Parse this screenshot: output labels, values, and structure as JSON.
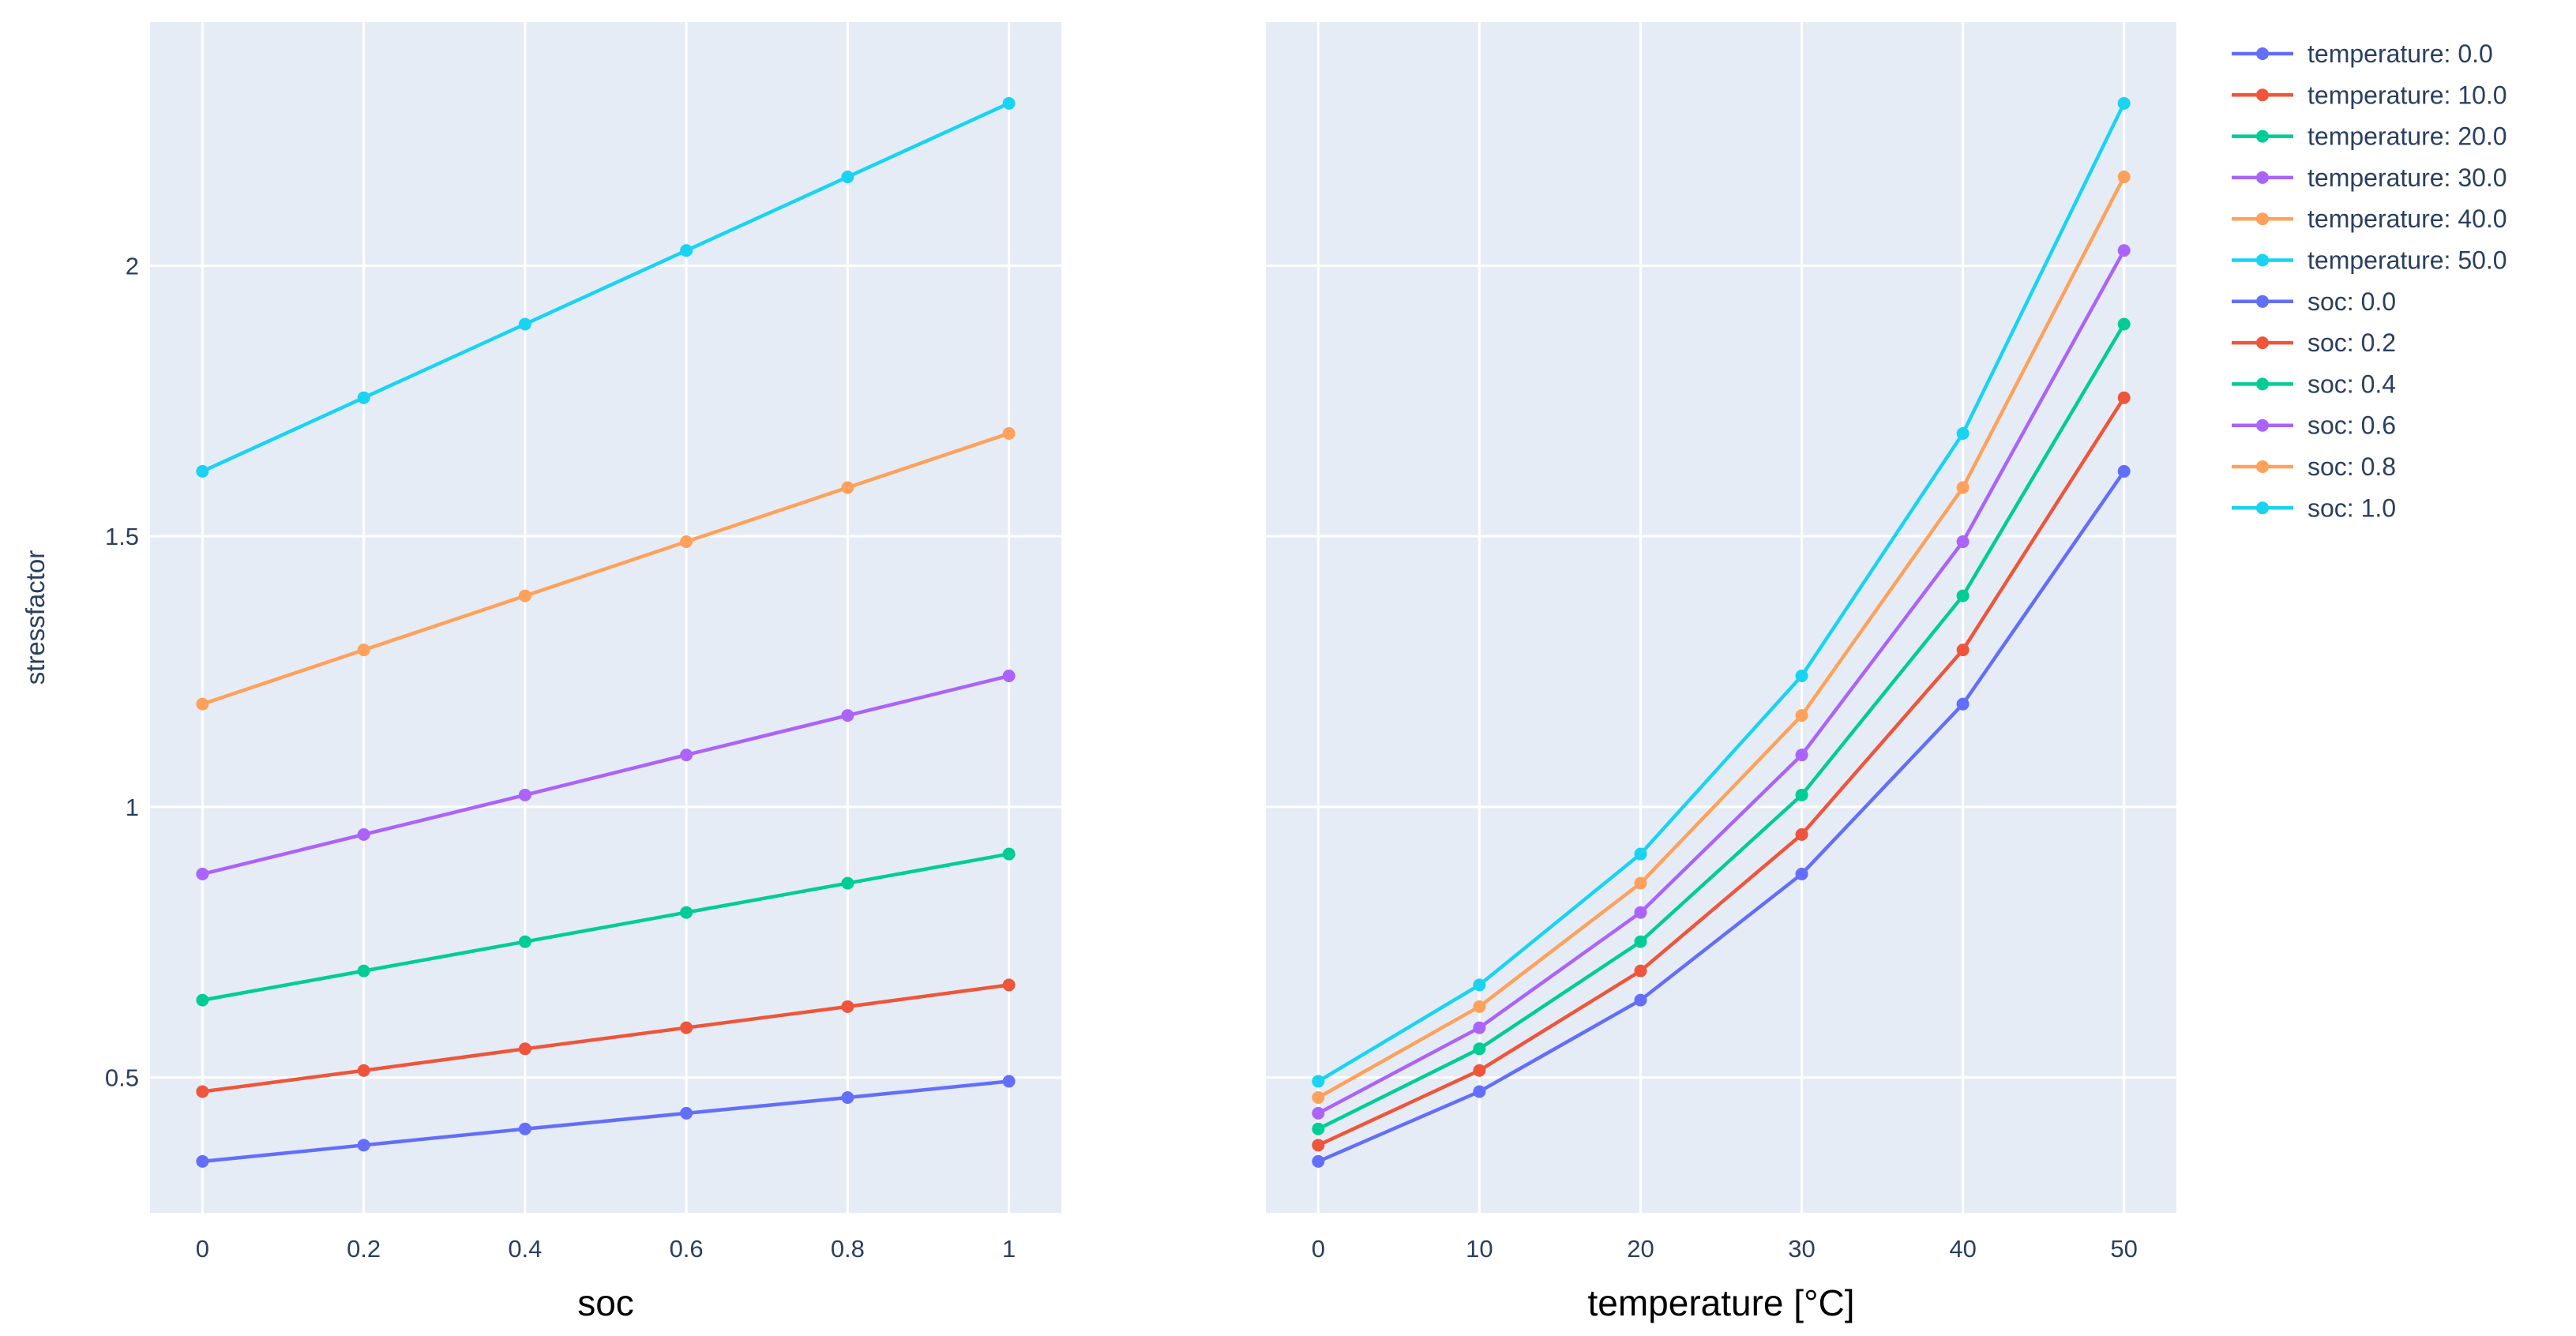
{
  "colors": {
    "plot_bg": "#e5ecf6",
    "grid": "#ffffff",
    "text": "#2a3f5f",
    "palette": [
      "#636efa",
      "#ef553b",
      "#00cc96",
      "#ab63fa",
      "#ffa15a",
      "#19d3f3"
    ]
  },
  "chart_data": [
    {
      "type": "line",
      "title": "",
      "xlabel": "soc",
      "ylabel": "stressfactor",
      "x": [
        0,
        0.2,
        0.4,
        0.6,
        0.8,
        1
      ],
      "x_tick_labels": [
        "0",
        "0.2",
        "0.4",
        "0.6",
        "0.8",
        "1"
      ],
      "xlim": [
        -0.065,
        1.065
      ],
      "ylim": [
        0.25,
        2.45
      ],
      "y_ticks": [
        0.5,
        1,
        1.5,
        2
      ],
      "y_tick_labels": [
        "0.5",
        "1",
        "1.5",
        "2"
      ],
      "grid": true,
      "series": [
        {
          "name": "temperature: 0.0",
          "values": [
            0.345,
            0.375,
            0.405,
            0.434,
            0.463,
            0.493
          ]
        },
        {
          "name": "temperature: 10.0",
          "values": [
            0.474,
            0.513,
            0.553,
            0.592,
            0.631,
            0.671
          ]
        },
        {
          "name": "temperature: 20.0",
          "values": [
            0.643,
            0.697,
            0.751,
            0.805,
            0.859,
            0.913
          ]
        },
        {
          "name": "temperature: 30.0",
          "values": [
            0.876,
            0.949,
            1.022,
            1.096,
            1.169,
            1.242
          ]
        },
        {
          "name": "temperature: 40.0",
          "values": [
            1.19,
            1.29,
            1.39,
            1.49,
            1.59,
            1.69
          ]
        },
        {
          "name": "temperature: 50.0",
          "values": [
            1.62,
            1.756,
            1.892,
            2.028,
            2.164,
            2.3
          ]
        }
      ]
    },
    {
      "type": "line",
      "title": "",
      "xlabel": "temperature [°C]",
      "ylabel": "",
      "x": [
        0,
        10,
        20,
        30,
        40,
        50
      ],
      "x_tick_labels": [
        "0",
        "10",
        "20",
        "30",
        "40",
        "50"
      ],
      "xlim": [
        -3.25,
        53.25
      ],
      "ylim": [
        0.25,
        2.45
      ],
      "y_ticks": [
        0.5,
        1,
        1.5,
        2
      ],
      "grid": true,
      "legend": "right",
      "series": [
        {
          "name": "soc: 0.0",
          "values": [
            0.345,
            0.474,
            0.643,
            0.876,
            1.19,
            1.62
          ]
        },
        {
          "name": "soc: 0.2",
          "values": [
            0.375,
            0.513,
            0.697,
            0.949,
            1.29,
            1.756
          ]
        },
        {
          "name": "soc: 0.4",
          "values": [
            0.405,
            0.553,
            0.751,
            1.022,
            1.39,
            1.892
          ]
        },
        {
          "name": "soc: 0.6",
          "values": [
            0.434,
            0.592,
            0.805,
            1.096,
            1.49,
            2.028
          ]
        },
        {
          "name": "soc: 0.8",
          "values": [
            0.463,
            0.631,
            0.859,
            1.169,
            1.59,
            2.164
          ]
        },
        {
          "name": "soc: 1.0",
          "values": [
            0.493,
            0.671,
            0.913,
            1.242,
            1.69,
            2.3
          ]
        }
      ]
    }
  ],
  "legend": {
    "position": "right",
    "entries": [
      "temperature: 0.0",
      "temperature: 10.0",
      "temperature: 20.0",
      "temperature: 30.0",
      "temperature: 40.0",
      "temperature: 50.0",
      "soc: 0.0",
      "soc: 0.2",
      "soc: 0.4",
      "soc: 0.6",
      "soc: 0.8",
      "soc: 1.0"
    ]
  }
}
